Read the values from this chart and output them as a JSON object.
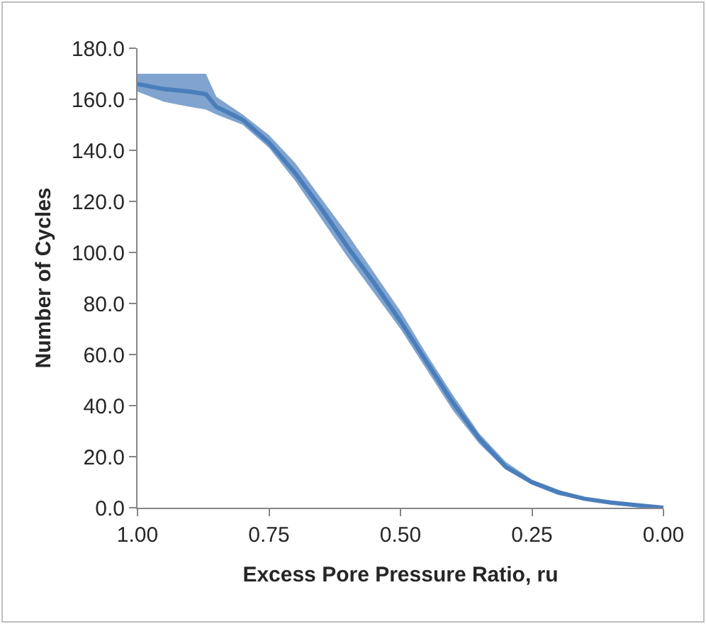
{
  "chart_data": {
    "type": "line",
    "xlabel": "Excess Pore Pressure Ratio, ru",
    "ylabel": "Number of Cycles",
    "x": [
      1.0,
      0.95,
      0.9,
      0.87,
      0.85,
      0.8,
      0.75,
      0.7,
      0.65,
      0.6,
      0.55,
      0.5,
      0.45,
      0.4,
      0.35,
      0.3,
      0.25,
      0.2,
      0.15,
      0.1,
      0.05,
      0.0
    ],
    "series": [
      {
        "color": "#4a7ebb",
        "values": [
          166,
          164,
          163,
          162,
          157,
          152,
          143,
          131,
          117,
          102,
          88,
          73,
          57,
          41,
          27,
          16,
          10,
          6,
          3.5,
          2,
          1,
          0
        ],
        "upper": [
          170,
          170,
          170,
          170,
          161,
          154,
          146,
          135,
          121,
          107,
          92,
          77,
          60,
          44,
          29,
          18,
          11,
          7,
          4,
          2.5,
          1.5,
          0
        ],
        "lower": [
          163,
          159,
          157,
          156,
          154,
          150,
          141,
          128,
          113,
          98,
          84,
          70,
          54,
          38,
          25,
          15,
          9,
          5,
          3,
          1.5,
          0.7,
          0
        ]
      }
    ],
    "xlim": [
      1.0,
      0.0
    ],
    "xticks": [
      {
        "value": 1,
        "label": "1.00"
      },
      {
        "value": 0.75,
        "label": "0.75"
      },
      {
        "value": 0.5,
        "label": "0.50"
      },
      {
        "value": 0.25,
        "label": "0.25"
      },
      {
        "value": 0,
        "label": "0.00"
      }
    ],
    "ylim": [
      0,
      180
    ],
    "yticks": [
      {
        "value": 0,
        "label": "0.0"
      },
      {
        "value": 20,
        "label": "20.0"
      },
      {
        "value": 40,
        "label": "40.0"
      },
      {
        "value": 60,
        "label": "60.0"
      },
      {
        "value": 80,
        "label": "80.0"
      },
      {
        "value": 100,
        "label": "100.0"
      },
      {
        "value": 120,
        "label": "120.0"
      },
      {
        "value": 140,
        "label": "140.0"
      },
      {
        "value": 160,
        "label": "160.0"
      },
      {
        "value": 180,
        "label": "180.0"
      }
    ],
    "grid": false,
    "marker": "none",
    "line_style": "solid"
  }
}
